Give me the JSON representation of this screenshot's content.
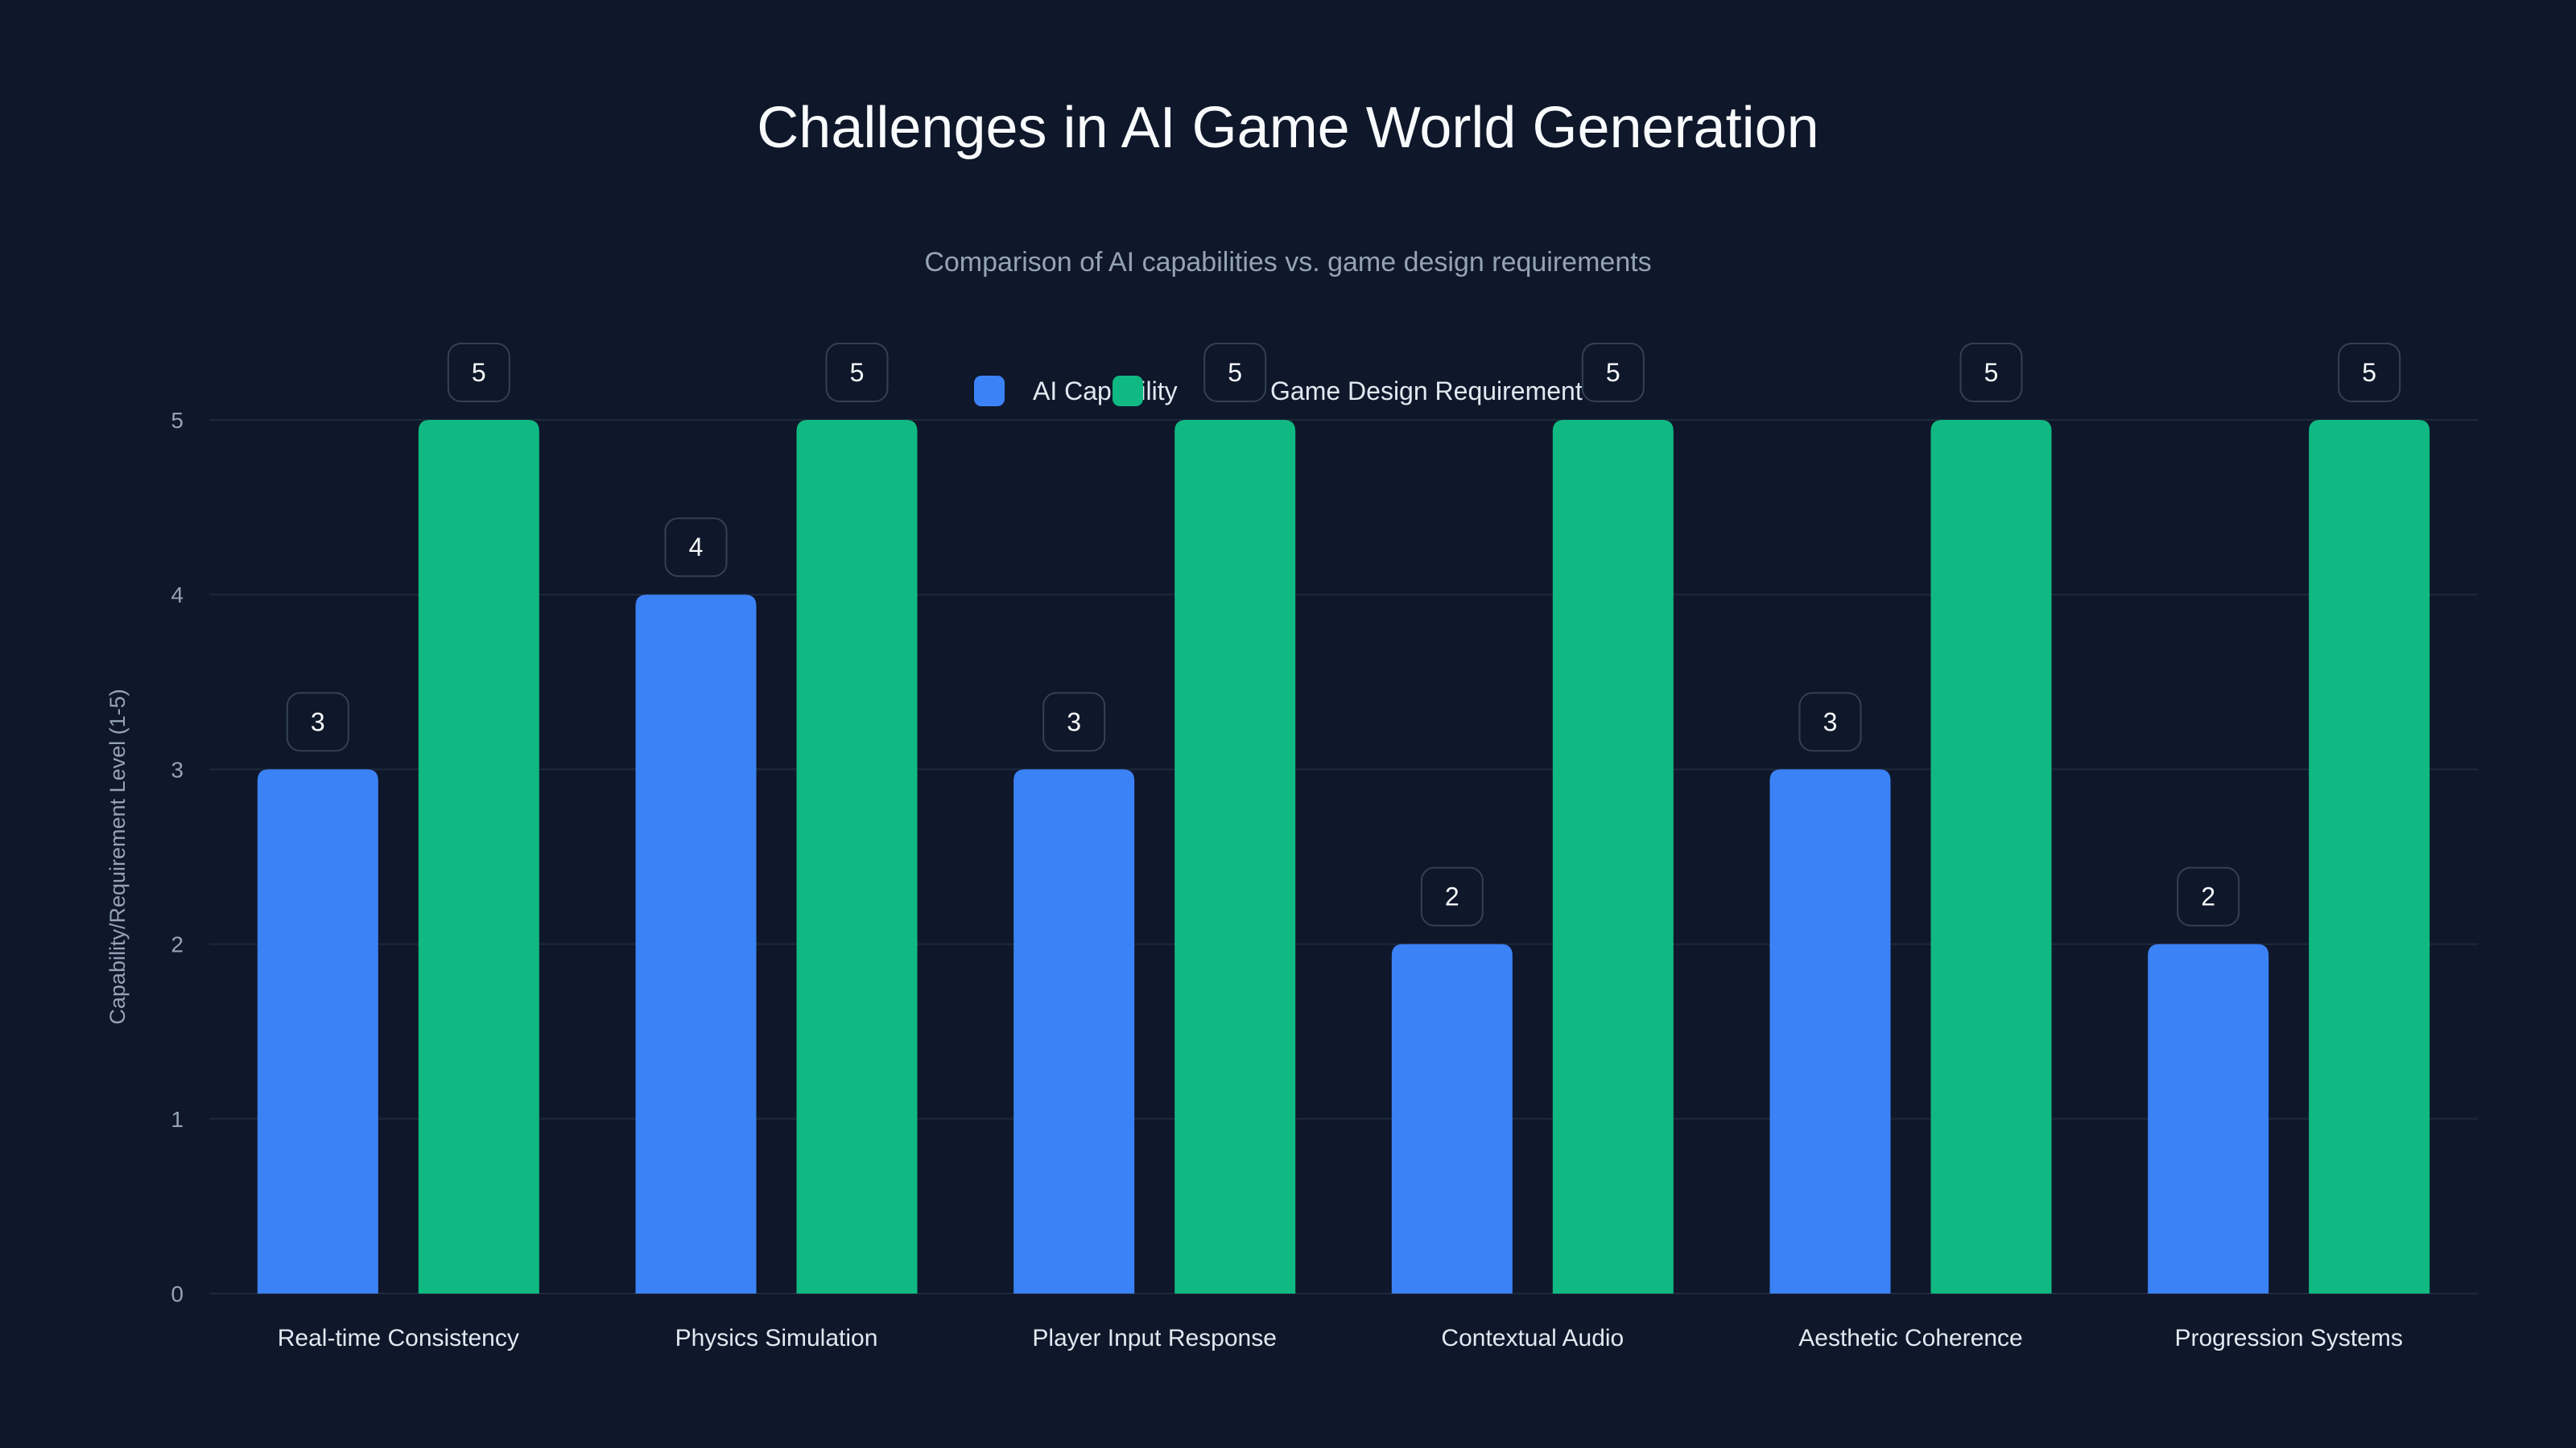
{
  "chart_data": {
    "type": "bar",
    "title": "Challenges in AI Game World Generation",
    "subtitle": "Comparison of AI capabilities vs. game design requirements",
    "xlabel": "",
    "ylabel": "Capability/Requirement Level (1-5)",
    "ylim": [
      0,
      5
    ],
    "yticks": [
      "0",
      "1",
      "2",
      "3",
      "4",
      "5"
    ],
    "grid": true,
    "legend_position": "top-center",
    "categories": [
      "Real-time Consistency",
      "Physics Simulation",
      "Player Input Response",
      "Contextual Audio",
      "Aesthetic Coherence",
      "Progression Systems"
    ],
    "series": [
      {
        "name": "AI Capability",
        "color": "#3b82f6",
        "values": [
          3,
          4,
          3,
          2,
          3,
          2
        ]
      },
      {
        "name": "Game Design Requirement",
        "color": "#10b981",
        "values": [
          5,
          5,
          5,
          5,
          5,
          5
        ]
      }
    ]
  }
}
